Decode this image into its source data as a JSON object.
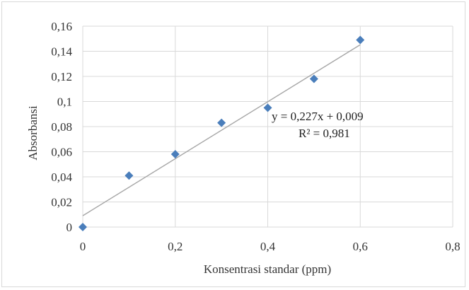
{
  "chart_data": {
    "type": "scatter",
    "title": "",
    "xlabel": "Konsentrasi standar (ppm)",
    "ylabel": "Absorbansi",
    "xlim": [
      0,
      0.8
    ],
    "ylim": [
      0,
      0.16
    ],
    "x_ticks": [
      0,
      0.2,
      0.4,
      0.6,
      0.8
    ],
    "y_ticks": [
      0,
      0.02,
      0.04,
      0.06,
      0.08,
      0.1,
      0.12,
      0.14,
      0.16
    ],
    "x_tick_labels": [
      "0",
      "0,2",
      "0,4",
      "0,6",
      "0,8"
    ],
    "y_tick_labels": [
      "0",
      "0,02",
      "0,04",
      "0,06",
      "0,08",
      "0,1",
      "0,12",
      "0,14",
      "0,16"
    ],
    "grid": true,
    "series": [
      {
        "x": [
          0,
          0.1,
          0.2,
          0.3,
          0.4,
          0.5,
          0.6
        ],
        "y": [
          0,
          0.041,
          0.058,
          0.083,
          0.095,
          0.118,
          0.149
        ],
        "marker": "diamond",
        "color": "#4a7ebb"
      }
    ],
    "trendline": {
      "slope": 0.227,
      "intercept": 0.009,
      "x_range": [
        0,
        0.6
      ],
      "color": "#a6a6a6"
    },
    "annotations": {
      "equation": "y = 0,227x + 0,009",
      "r_squared": "R² = 0,981"
    }
  }
}
